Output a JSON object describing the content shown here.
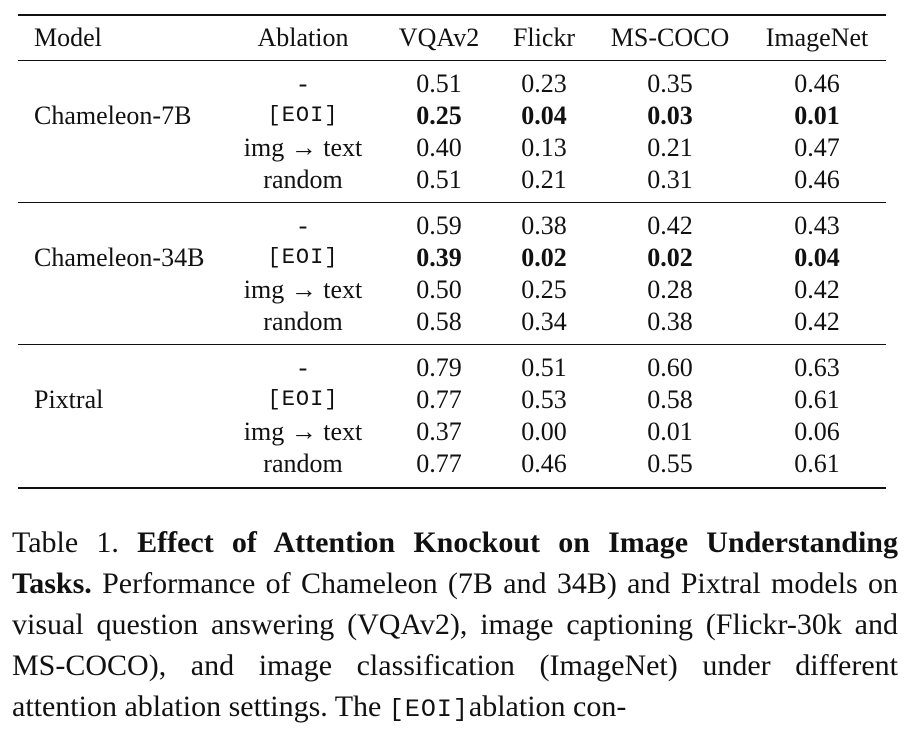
{
  "table": {
    "headers": [
      "Model",
      "Ablation",
      "VQAv2",
      "Flickr",
      "MS-COCO",
      "ImageNet"
    ],
    "groups": [
      {
        "model": "Chameleon-7B",
        "rows": [
          {
            "ablation": "-",
            "values": [
              "0.51",
              "0.23",
              "0.35",
              "0.46"
            ],
            "bold": false
          },
          {
            "ablation": "[EOI]",
            "values": [
              "0.25",
              "0.04",
              "0.03",
              "0.01"
            ],
            "bold": true
          },
          {
            "ablation": "img → text",
            "values": [
              "0.40",
              "0.13",
              "0.21",
              "0.47"
            ],
            "bold": false
          },
          {
            "ablation": "random",
            "values": [
              "0.51",
              "0.21",
              "0.31",
              "0.46"
            ],
            "bold": false
          }
        ]
      },
      {
        "model": "Chameleon-34B",
        "rows": [
          {
            "ablation": "-",
            "values": [
              "0.59",
              "0.38",
              "0.42",
              "0.43"
            ],
            "bold": false
          },
          {
            "ablation": "[EOI]",
            "values": [
              "0.39",
              "0.02",
              "0.02",
              "0.04"
            ],
            "bold": true
          },
          {
            "ablation": "img → text",
            "values": [
              "0.50",
              "0.25",
              "0.28",
              "0.42"
            ],
            "bold": false
          },
          {
            "ablation": "random",
            "values": [
              "0.58",
              "0.34",
              "0.38",
              "0.42"
            ],
            "bold": false
          }
        ]
      },
      {
        "model": "Pixtral",
        "rows": [
          {
            "ablation": "-",
            "values": [
              "0.79",
              "0.51",
              "0.60",
              "0.63"
            ],
            "bold": false
          },
          {
            "ablation": "[EOI]",
            "values": [
              "0.77",
              "0.53",
              "0.58",
              "0.61"
            ],
            "bold": false
          },
          {
            "ablation": "img → text",
            "values": [
              "0.37",
              "0.00",
              "0.01",
              "0.06"
            ],
            "bold": false
          },
          {
            "ablation": "random",
            "values": [
              "0.77",
              "0.46",
              "0.55",
              "0.61"
            ],
            "bold": false
          }
        ]
      }
    ]
  },
  "caption": {
    "label": "Table 1.",
    "title": "Effect of Attention Knockout on Image Understanding Tasks.",
    "body_1": "Performance of Chameleon (7B and 34B) and Pixtral models on visual question answering (VQAv2), image captioning (Flickr-30k and MS-COCO), and image classification (ImageNet) under different attention ablation settings. The",
    "token": "[EOI]",
    "body_2": "ablation con-"
  }
}
